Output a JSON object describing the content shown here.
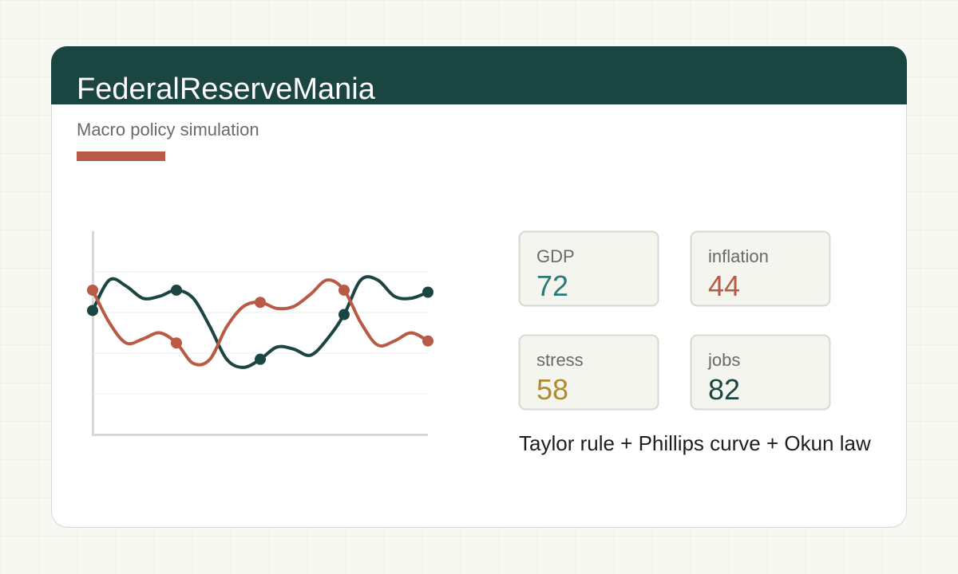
{
  "header": {
    "title": "FederalReserveMania",
    "subtitle": "Macro policy simulation"
  },
  "chart_data": {
    "type": "line",
    "ylim": [
      0,
      100
    ],
    "ygrid": [
      20,
      40,
      60,
      80
    ],
    "markers_every": 5,
    "series": [
      {
        "color": "#1b4540",
        "values": [
          61,
          76,
          73,
          67,
          68,
          71,
          67,
          53,
          37,
          33,
          37,
          43,
          42,
          39,
          47,
          59,
          76,
          76,
          68,
          67,
          70
        ]
      },
      {
        "color": "#b85a45",
        "values": [
          71,
          55,
          45,
          47,
          50,
          45,
          35,
          37,
          53,
          63,
          65,
          62,
          63,
          69,
          76,
          71,
          55,
          44,
          46,
          50,
          46
        ]
      }
    ]
  },
  "stats": [
    {
      "label": "GDP",
      "value": 72,
      "color": "#2a7a75"
    },
    {
      "label": "inflation",
      "value": 44,
      "color": "#b85a45"
    },
    {
      "label": "stress",
      "value": 58,
      "color": "#b08a30"
    },
    {
      "label": "jobs",
      "value": 82,
      "color": "#1b4540"
    }
  ],
  "footer": "Taylor rule + Phillips curve + Okun law"
}
